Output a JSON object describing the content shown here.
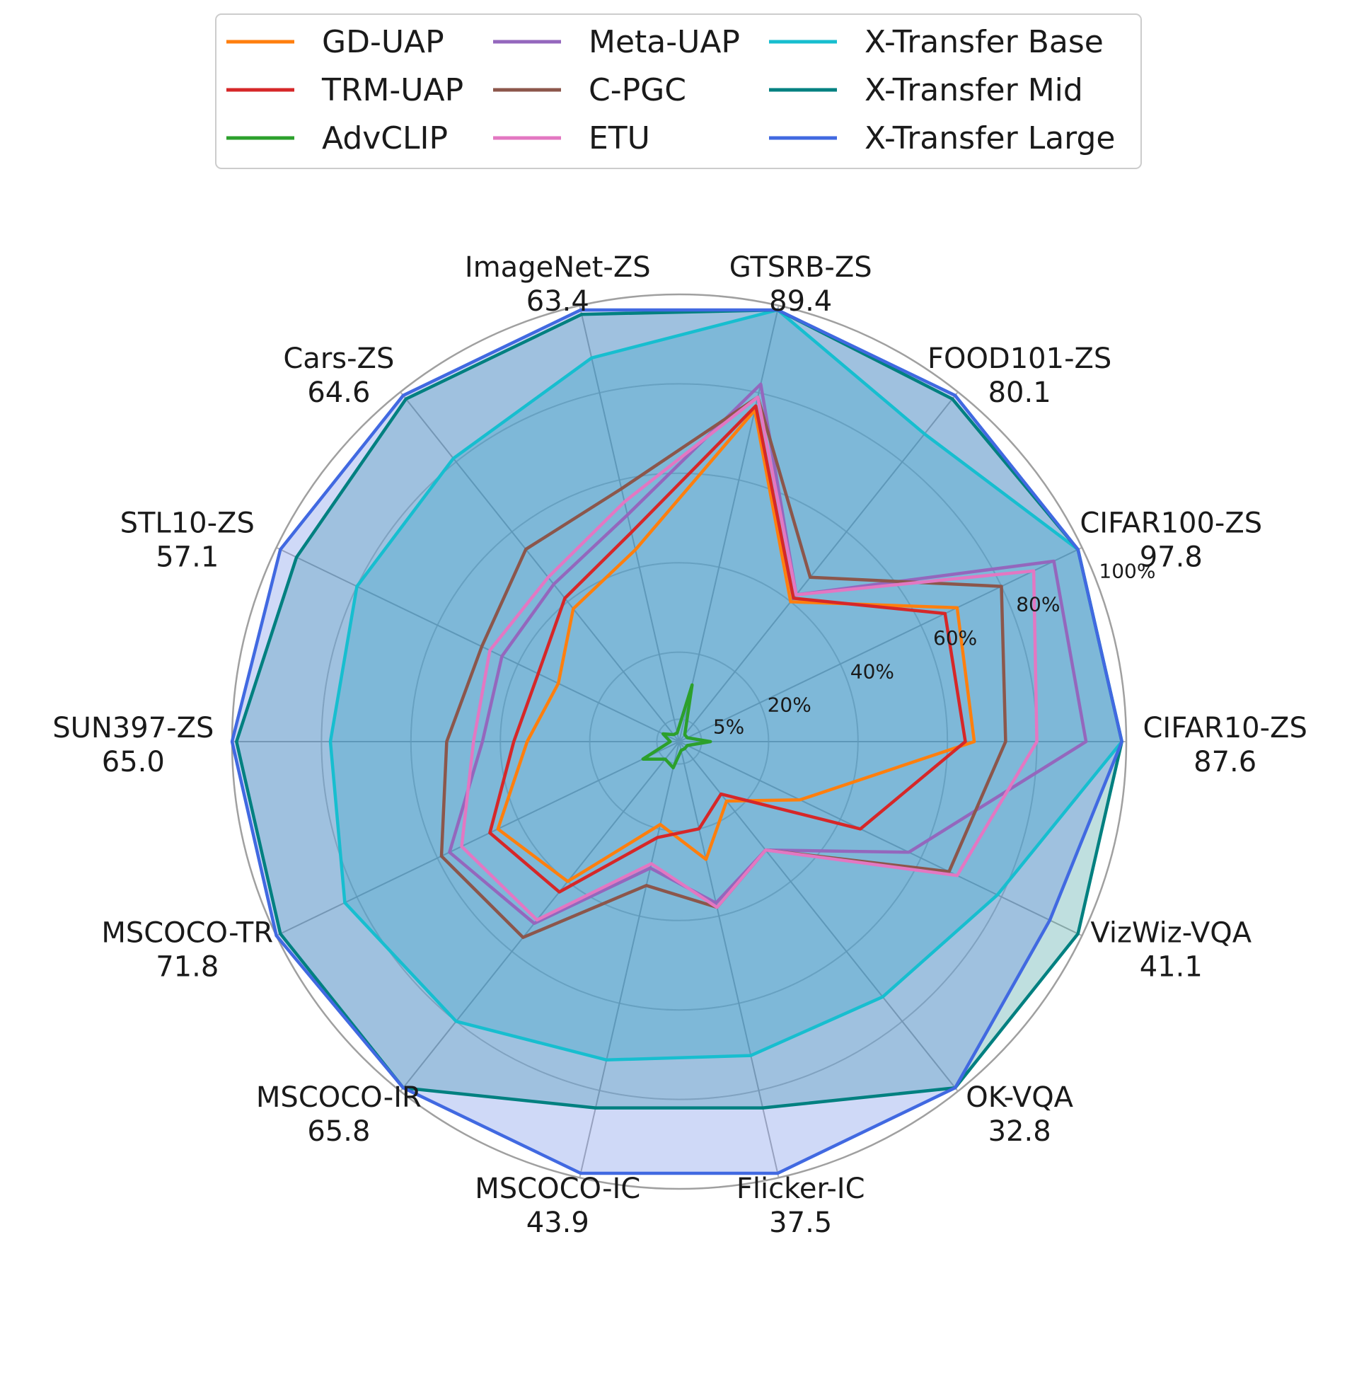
{
  "chart_data": {
    "type": "radar",
    "axes": [
      {
        "name": "CIFAR10-ZS",
        "value": "87.6"
      },
      {
        "name": "CIFAR100-ZS",
        "value": "97.8"
      },
      {
        "name": "FOOD101-ZS",
        "value": "80.1"
      },
      {
        "name": "GTSRB-ZS",
        "value": "89.4"
      },
      {
        "name": "ImageNet-ZS",
        "value": "63.4"
      },
      {
        "name": "Cars-ZS",
        "value": "64.6"
      },
      {
        "name": "STL10-ZS",
        "value": "57.1"
      },
      {
        "name": "SUN397-ZS",
        "value": "65.0"
      },
      {
        "name": "MSCOCO-TR",
        "value": "71.8"
      },
      {
        "name": "MSCOCO-IR",
        "value": "65.8"
      },
      {
        "name": "MSCOCO-IC",
        "value": "43.9"
      },
      {
        "name": "Flicker-IC",
        "value": "37.5"
      },
      {
        "name": "OK-VQA",
        "value": "32.8"
      },
      {
        "name": "VizWiz-VQA",
        "value": "41.1"
      }
    ],
    "radial_ticks": [
      {
        "label": "5%",
        "value": 5
      },
      {
        "label": "20%",
        "value": 20
      },
      {
        "label": "40%",
        "value": 40
      },
      {
        "label": "60%",
        "value": 60
      },
      {
        "label": "80%",
        "value": 80
      },
      {
        "label": "100%",
        "value": 100
      }
    ],
    "rlim": [
      0,
      100
    ],
    "grid": true,
    "legend_position": "top",
    "series": [
      {
        "name": "GD-UAP",
        "color": "#ff7f0e",
        "fill": false,
        "values": [
          66,
          69,
          40,
          76,
          44,
          38,
          30,
          34,
          45,
          40,
          19,
          27,
          17,
          30
        ]
      },
      {
        "name": "TRM-UAP",
        "color": "#d62728",
        "fill": false,
        "values": [
          64,
          66,
          41,
          77,
          48,
          41,
          35,
          37,
          47,
          43,
          22,
          20,
          15,
          45
        ]
      },
      {
        "name": "AdvCLIP",
        "color": "#2ca02c",
        "fill": false,
        "values": [
          7,
          2,
          2,
          13,
          2,
          2,
          4,
          2,
          9,
          5,
          6,
          2,
          2,
          2
        ]
      },
      {
        "name": "Meta-UAP",
        "color": "#9467bd",
        "fill": false,
        "values": [
          91,
          93,
          42,
          82,
          52,
          45,
          44,
          44,
          57,
          52,
          29,
          37,
          31,
          57
        ]
      },
      {
        "name": "C-PGC",
        "color": "#8c564b",
        "fill": false,
        "values": [
          73,
          80,
          47,
          79,
          58,
          55,
          49,
          52,
          59,
          56,
          33,
          38,
          31,
          67
        ]
      },
      {
        "name": "ETU",
        "color": "#e377c2",
        "fill": false,
        "values": [
          80,
          88,
          42,
          79,
          55,
          47,
          47,
          46,
          54,
          51,
          28,
          38,
          31,
          69
        ]
      },
      {
        "name": "X-Transfer Base",
        "color": "#17becf",
        "fill": true,
        "values": [
          99,
          99,
          88,
          99,
          88,
          81,
          80,
          78,
          83,
          80,
          73,
          72,
          73,
          79
        ]
      },
      {
        "name": "X-Transfer Mid",
        "color": "#008080",
        "fill": true,
        "values": [
          99,
          99,
          98,
          99,
          98,
          98,
          95,
          99,
          99,
          99,
          84,
          84,
          99,
          99
        ]
      },
      {
        "name": "X-Transfer Large",
        "color": "#4169e1",
        "fill": true,
        "values": [
          99,
          99,
          99,
          99,
          99,
          99,
          99,
          100,
          100,
          99,
          99,
          99,
          99,
          92
        ]
      }
    ]
  }
}
